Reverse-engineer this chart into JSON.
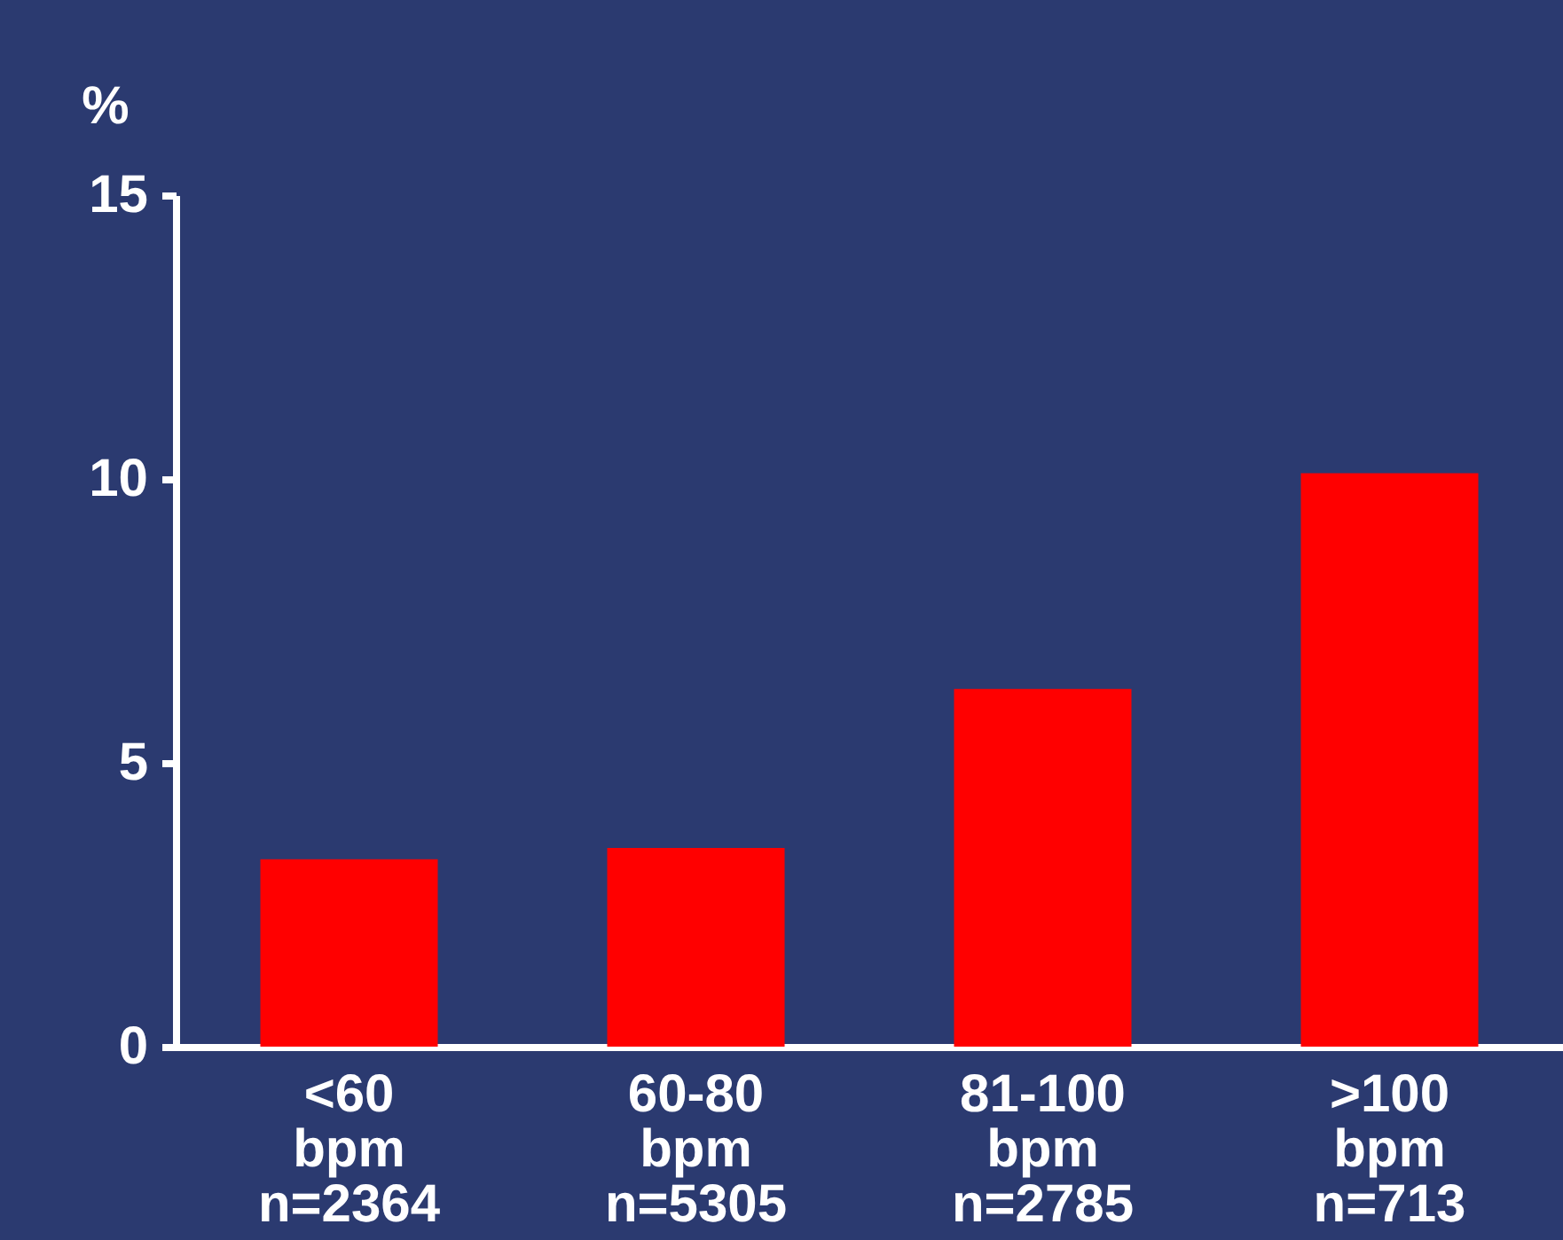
{
  "chart_data": {
    "type": "bar",
    "ylabel": "%",
    "categories": [
      "<60\nbpm\nn=2364",
      "60-80\nbpm\nn=5305",
      "81-100\nbpm\nn=2785",
      ">100\nbpm\nn=713"
    ],
    "values": [
      3.3,
      3.5,
      6.3,
      10.1
    ],
    "color": "#ff0000",
    "ylim": [
      0,
      15
    ],
    "yticks": [
      0,
      5,
      10,
      15
    ],
    "grid": false
  }
}
